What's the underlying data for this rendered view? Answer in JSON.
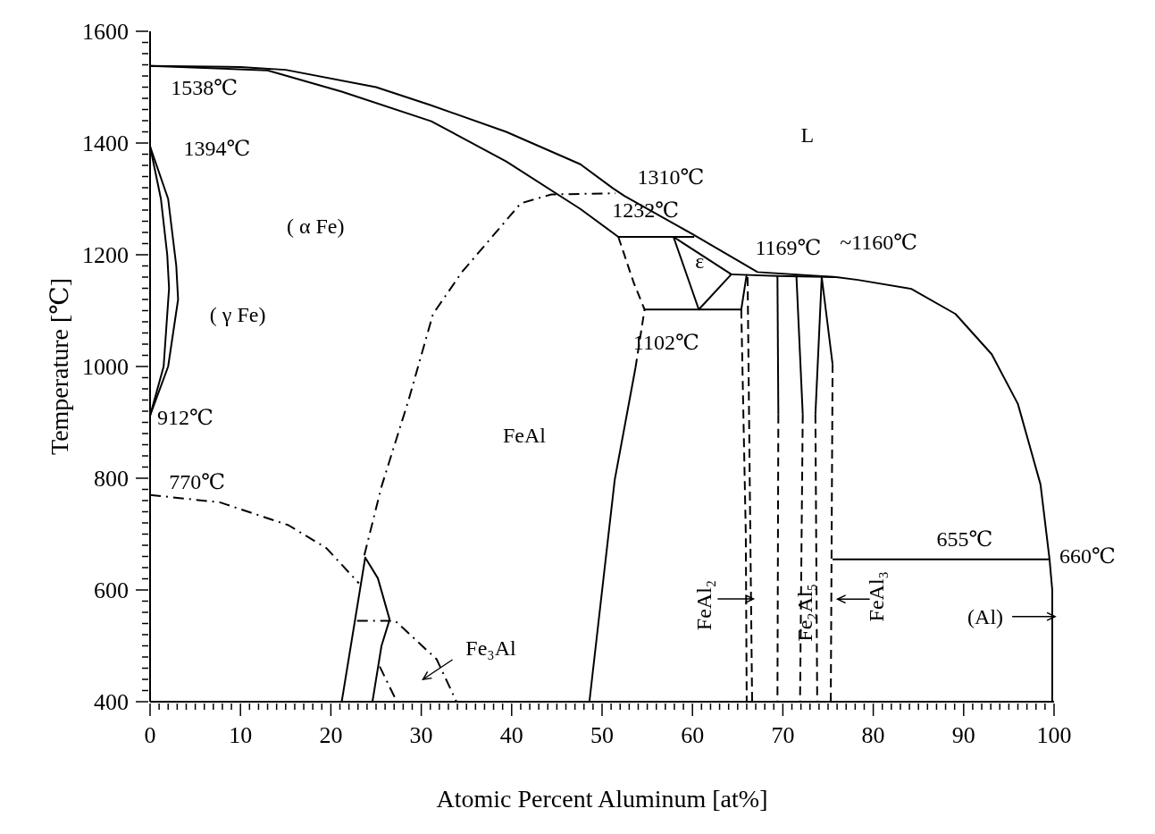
{
  "chart_data": {
    "type": "line",
    "xlabel": "Atomic Percent Aluminum [at%]",
    "ylabel": "Temperature [℃]",
    "xlim": [
      0,
      100
    ],
    "ylim": [
      400,
      1600
    ],
    "xticks": [
      0,
      {
        "value": 1,
        "label": null
      },
      {
        "value": 2,
        "label": null
      },
      {
        "value": 3,
        "label": null
      },
      {
        "value": 4,
        "label": null
      },
      {
        "value": 5,
        "label": null
      },
      {
        "value": 6,
        "label": null
      },
      {
        "value": 7,
        "label": null
      },
      {
        "value": 8,
        "label": null
      },
      {
        "value": 9,
        "label": null
      },
      10,
      {
        "value": 11,
        "label": null
      },
      {
        "value": 12,
        "label": null
      },
      {
        "value": 13,
        "label": null
      },
      {
        "value": 14,
        "label": null
      },
      {
        "value": 15,
        "label": null
      },
      {
        "value": 16,
        "label": null
      },
      {
        "value": 17,
        "label": null
      },
      {
        "value": 18,
        "label": null
      },
      {
        "value": 19,
        "label": null
      },
      20,
      {
        "value": 21,
        "label": null
      },
      {
        "value": 22,
        "label": null
      },
      {
        "value": 23,
        "label": null
      },
      {
        "value": 24,
        "label": null
      },
      {
        "value": 25,
        "label": null
      },
      {
        "value": 26,
        "label": null
      },
      {
        "value": 27,
        "label": null
      },
      {
        "value": 28,
        "label": null
      },
      {
        "value": 29,
        "label": null
      },
      30,
      {
        "value": 31,
        "label": null
      },
      {
        "value": 32,
        "label": null
      },
      {
        "value": 33,
        "label": null
      },
      {
        "value": 34,
        "label": null
      },
      {
        "value": 35,
        "label": null
      },
      {
        "value": 36,
        "label": null
      },
      {
        "value": 37,
        "label": null
      },
      {
        "value": 38,
        "label": null
      },
      {
        "value": 39,
        "label": null
      },
      40,
      {
        "value": 41,
        "label": null
      },
      {
        "value": 42,
        "label": null
      },
      {
        "value": 43,
        "label": null
      },
      {
        "value": 44,
        "label": null
      },
      {
        "value": 45,
        "label": null
      },
      {
        "value": 46,
        "label": null
      },
      {
        "value": 47,
        "label": null
      },
      {
        "value": 48,
        "label": null
      },
      {
        "value": 49,
        "label": null
      },
      50,
      {
        "value": 51,
        "label": null
      },
      {
        "value": 52,
        "label": null
      },
      {
        "value": 53,
        "label": null
      },
      {
        "value": 54,
        "label": null
      },
      {
        "value": 55,
        "label": null
      },
      {
        "value": 56,
        "label": null
      },
      {
        "value": 57,
        "label": null
      },
      {
        "value": 58,
        "label": null
      },
      {
        "value": 59,
        "label": null
      },
      60,
      {
        "value": 61,
        "label": null
      },
      {
        "value": 62,
        "label": null
      },
      {
        "value": 63,
        "label": null
      },
      {
        "value": 64,
        "label": null
      },
      {
        "value": 65,
        "label": null
      },
      {
        "value": 66,
        "label": null
      },
      {
        "value": 67,
        "label": null
      },
      {
        "value": 68,
        "label": null
      },
      {
        "value": 69,
        "label": null
      },
      70,
      {
        "value": 71,
        "label": null
      },
      {
        "value": 72,
        "label": null
      },
      {
        "value": 73,
        "label": null
      },
      {
        "value": 74,
        "label": null
      },
      {
        "value": 75,
        "label": null
      },
      {
        "value": 76,
        "label": null
      },
      {
        "value": 77,
        "label": null
      },
      {
        "value": 78,
        "label": null
      },
      {
        "value": 79,
        "label": null
      },
      80,
      {
        "value": 81,
        "label": null
      },
      {
        "value": 82,
        "label": null
      },
      {
        "value": 83,
        "label": null
      },
      {
        "value": 84,
        "label": null
      },
      {
        "value": 85,
        "label": null
      },
      {
        "value": 86,
        "label": null
      },
      {
        "value": 87,
        "label": null
      },
      {
        "value": 88,
        "label": null
      },
      {
        "value": 89,
        "label": null
      },
      90,
      {
        "value": 91,
        "label": null
      },
      {
        "value": 92,
        "label": null
      },
      {
        "value": 93,
        "label": null
      },
      {
        "value": 94,
        "label": null
      },
      {
        "value": 95,
        "label": null
      },
      {
        "value": 96,
        "label": null
      },
      {
        "value": 97,
        "label": null
      },
      {
        "value": 98,
        "label": null
      },
      {
        "value": 99,
        "label": null
      },
      100
    ],
    "yticks": [
      400,
      {
        "value": 420,
        "label": null
      },
      {
        "value": 440,
        "label": null
      },
      {
        "value": 460,
        "label": null
      },
      {
        "value": 480,
        "label": null
      },
      {
        "value": 500,
        "label": null
      },
      {
        "value": 520,
        "label": null
      },
      {
        "value": 540,
        "label": null
      },
      {
        "value": 560,
        "label": null
      },
      {
        "value": 580,
        "label": null
      },
      600,
      {
        "value": 620,
        "label": null
      },
      {
        "value": 640,
        "label": null
      },
      {
        "value": 660,
        "label": null
      },
      {
        "value": 680,
        "label": null
      },
      {
        "value": 700,
        "label": null
      },
      {
        "value": 720,
        "label": null
      },
      {
        "value": 740,
        "label": null
      },
      {
        "value": 760,
        "label": null
      },
      {
        "value": 780,
        "label": null
      },
      800,
      {
        "value": 820,
        "label": null
      },
      {
        "value": 840,
        "label": null
      },
      {
        "value": 860,
        "label": null
      },
      {
        "value": 880,
        "label": null
      },
      {
        "value": 900,
        "label": null
      },
      {
        "value": 920,
        "label": null
      },
      {
        "value": 940,
        "label": null
      },
      {
        "value": 960,
        "label": null
      },
      {
        "value": 980,
        "label": null
      },
      1000,
      {
        "value": 1020,
        "label": null
      },
      {
        "value": 1040,
        "label": null
      },
      {
        "value": 1060,
        "label": null
      },
      {
        "value": 1080,
        "label": null
      },
      {
        "value": 1100,
        "label": null
      },
      {
        "value": 1120,
        "label": null
      },
      {
        "value": 1140,
        "label": null
      },
      {
        "value": 1160,
        "label": null
      },
      {
        "value": 1180,
        "label": null
      },
      1200,
      {
        "value": 1220,
        "label": null
      },
      {
        "value": 1240,
        "label": null
      },
      {
        "value": 1260,
        "label": null
      },
      {
        "value": 1280,
        "label": null
      },
      {
        "value": 1300,
        "label": null
      },
      {
        "value": 1320,
        "label": null
      },
      {
        "value": 1340,
        "label": null
      },
      {
        "value": 1360,
        "label": null
      },
      {
        "value": 1380,
        "label": null
      },
      1400,
      {
        "value": 1420,
        "label": null
      },
      {
        "value": 1440,
        "label": null
      },
      {
        "value": 1460,
        "label": null
      },
      {
        "value": 1480,
        "label": null
      },
      {
        "value": 1500,
        "label": null
      },
      {
        "value": 1520,
        "label": null
      },
      {
        "value": 1540,
        "label": null
      },
      {
        "value": 1560,
        "label": null
      },
      {
        "value": 1580,
        "label": null
      },
      1600
    ],
    "series": [
      {
        "color": "#000000",
        "line_style": "solid",
        "x": [
          0,
          10,
          15,
          25,
          31,
          39.4,
          47.6,
          51.2,
          52.5,
          60,
          67.2,
          75.9,
          78.3,
          84.2,
          89.1,
          93.1,
          96,
          98.5,
          99.5
        ],
        "values": [
          1538,
          1536,
          1531,
          1500,
          1468,
          1420,
          1362,
          1319,
          1305,
          1237,
          1169,
          1160,
          1155,
          1139,
          1094,
          1022,
          933,
          789,
          655
        ]
      },
      {
        "color": "#000000",
        "line_style": "solid",
        "x": [
          0,
          13,
          21.2,
          31.1,
          39.4,
          47.6,
          51.8,
          60.2
        ],
        "values": [
          1538,
          1530,
          1492,
          1439,
          1367,
          1282,
          1232,
          1232
        ]
      },
      {
        "color": "#000000",
        "line_style": "solid",
        "x": [
          57.9,
          60.7,
          64.3
        ],
        "values": [
          1232,
          1102,
          1165
        ]
      },
      {
        "color": "#000000",
        "line_style": "solid",
        "x": [
          57.9,
          64.3
        ],
        "values": [
          1232,
          1165
        ]
      },
      {
        "color": "#000000",
        "line_style": "solid",
        "x": [
          54.7,
          65.4,
          66.0
        ],
        "values": [
          1102,
          1102,
          1165
        ]
      },
      {
        "color": "#000000",
        "line_style": "solid",
        "x": [
          64.1,
          69.4,
          75.9
        ],
        "values": [
          1165,
          1162,
          1160
        ]
      },
      {
        "color": "#000000",
        "line_style": "dashed",
        "x": [
          51.8,
          53.5,
          54.7
        ],
        "values": [
          1232,
          1150,
          1102
        ]
      },
      {
        "color": "#000000",
        "line_style": "dashed",
        "x": [
          53.7,
          54.2,
          54.7
        ],
        "values": [
          998,
          1050,
          1102
        ]
      },
      {
        "color": "#000000",
        "line_style": "solid",
        "x": [
          53.7,
          51.4,
          48.6
        ],
        "values": [
          998,
          797,
          400
        ]
      },
      {
        "color": "#000000",
        "line_style": "dashdot",
        "x": [
          23.7,
          25.6,
          28.6,
          31.3,
          34.5,
          41,
          44.4,
          51.5
        ],
        "values": [
          662,
          785,
          940,
          1094,
          1169,
          1292,
          1308,
          1310
        ]
      },
      {
        "color": "#000000",
        "line_style": "dashdot",
        "x": [
          0,
          7.7,
          15.3,
          19.5,
          23.1
        ],
        "values": [
          770,
          757,
          716,
          675,
          612
        ]
      },
      {
        "color": "#000000",
        "line_style": "dashdot",
        "x": [
          22.9,
          27.1,
          31.7,
          33.9
        ],
        "values": [
          545,
          545,
          476,
          400
        ]
      },
      {
        "color": "#000000",
        "line_style": "dashdot",
        "x": [
          25.4,
          27.3
        ],
        "values": [
          463,
          400
        ]
      },
      {
        "color": "#000000",
        "line_style": "solid",
        "x": [
          21.2,
          23.8,
          25.2,
          26.5
        ],
        "values": [
          400,
          658,
          621,
          547
        ]
      },
      {
        "color": "#000000",
        "line_style": "solid",
        "x": [
          24.6,
          25.6,
          26.5
        ],
        "values": [
          400,
          500,
          547
        ]
      },
      {
        "color": "#000000",
        "line_style": "dashed",
        "x": [
          65.4,
          65.9,
          66.0
        ],
        "values": [
          1102,
          700,
          400
        ]
      },
      {
        "color": "#000000",
        "line_style": "dashed",
        "x": [
          66.1,
          66.4,
          66.6
        ],
        "values": [
          1160,
          700,
          400
        ]
      },
      {
        "color": "#000000",
        "line_style": "solid",
        "x": [
          69.4,
          69.5
        ],
        "values": [
          1162,
          914
        ]
      },
      {
        "color": "#000000",
        "line_style": "dashed",
        "x": [
          69.5,
          69.4
        ],
        "values": [
          914,
          400
        ]
      },
      {
        "color": "#000000",
        "line_style": "solid",
        "x": [
          71.5,
          72.2
        ],
        "values": [
          1162,
          914
        ]
      },
      {
        "color": "#000000",
        "line_style": "dashed",
        "x": [
          72.2,
          71.9
        ],
        "values": [
          914,
          400
        ]
      },
      {
        "color": "#000000",
        "line_style": "solid",
        "x": [
          73.6,
          74.3,
          75.5
        ],
        "values": [
          914,
          1160,
          1004
        ]
      },
      {
        "color": "#000000",
        "line_style": "dashed",
        "x": [
          73.6,
          73.8
        ],
        "values": [
          914,
          400
        ]
      },
      {
        "color": "#000000",
        "line_style": "dashed",
        "x": [
          75.3,
          75.5
        ],
        "values": [
          400,
          1004
        ]
      },
      {
        "color": "#000000",
        "line_style": "solid",
        "x": [
          75.5,
          99.5,
          99.8,
          99.8
        ],
        "values": [
          655,
          655,
          600,
          400
        ]
      },
      {
        "color": "#000000",
        "line_style": "solid",
        "x": [
          0,
          1.2,
          1.9,
          2.1,
          1.5,
          0
        ],
        "values": [
          1394,
          1300,
          1200,
          1140,
          1000,
          912
        ]
      },
      {
        "color": "#000000",
        "line_style": "solid",
        "x": [
          0,
          2,
          2.9,
          3.1,
          2,
          0
        ],
        "values": [
          1394,
          1300,
          1180,
          1120,
          1000,
          912
        ]
      }
    ],
    "annotations": [
      "L",
      "( α Fe)",
      "( γ Fe)",
      "FeAl",
      "ε",
      "1538℃",
      "1394℃",
      "912℃",
      "770℃",
      "1310℃",
      "1232℃",
      "1102℃",
      "1169℃",
      "~1160℃",
      "655℃",
      "660℃",
      "Fe₃Al",
      "FeAl₂",
      "Fe₂Al₅",
      "FeAl₃",
      "(Al)"
    ]
  }
}
